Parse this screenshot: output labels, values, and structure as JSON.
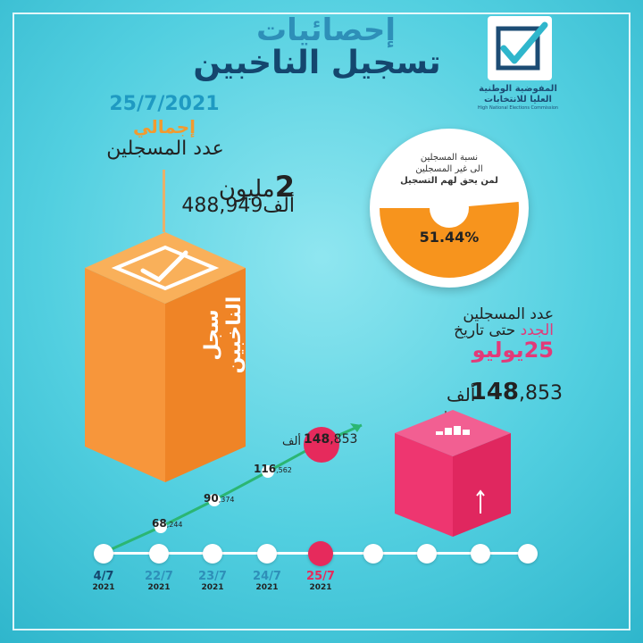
{
  "header": {
    "title_top": "إحصائيات",
    "title_main": "تسجيل الناخبين"
  },
  "logo": {
    "line1": "المفوضية الوطنية",
    "line2": "العليا للانتخابات",
    "line3": "High National Elections Commission",
    "icon": "checkmark-box-icon"
  },
  "total": {
    "date": "25/7/2021",
    "label": "إجمالي",
    "subtitle": "عدد المسجلين",
    "value_main_num": "2",
    "value_main_unit": "مليون",
    "value_second": "488,949ألف",
    "box_label": "سجل الناخبين",
    "box_icon": "ballot-check-icon"
  },
  "ratio": {
    "caption_line1": "نسبة المسجلين",
    "caption_line2": "الى غير المسجلين",
    "caption_line3": "لمن يحق لهم التسجيل",
    "percent_text": "51.44%",
    "fraction": 0.5144
  },
  "new_reg": {
    "line1": "عدد المسجلين",
    "line2_pink": "الجدد",
    "line2_rest": "حتى تاريخ",
    "line3_num": "25",
    "line3_month": "يوليو",
    "value_big": "148",
    "value_small": ",853",
    "value_unit": "ألف",
    "box_icon": "bar-chart-icon"
  },
  "colors": {
    "orange": "#f7963b",
    "pink": "#ee3670",
    "green": "#2bb673",
    "title_blue": "#2e8fb8",
    "title_navy": "#14466e"
  },
  "timeline": {
    "dates": [
      {
        "day": "4/7",
        "year": "2021",
        "color": "#14466e"
      },
      {
        "day": "22/7",
        "year": "2021",
        "color": "#2e8fb8"
      },
      {
        "day": "23/7",
        "year": "2021",
        "color": "#2e8fb8"
      },
      {
        "day": "24/7",
        "year": "2021",
        "color": "#2e8fb8"
      },
      {
        "day": "25/7",
        "year": "2021",
        "color": "#e62a5c"
      }
    ],
    "points": [
      {
        "big": "68",
        "small": ",244"
      },
      {
        "big": "90",
        "small": ",374"
      },
      {
        "big": "116",
        "small": ",562"
      }
    ],
    "highlight": {
      "big": "148",
      "small": ",853",
      "unit": "ألف"
    }
  }
}
